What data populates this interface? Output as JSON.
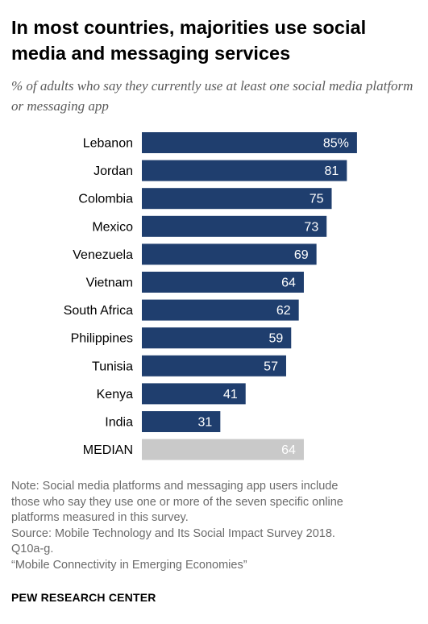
{
  "title": "In most countries, majorities use social media and messaging services",
  "subtitle": "% of adults who say they currently use at least one social media platform or messaging app",
  "chart_data": {
    "type": "bar",
    "orientation": "horizontal",
    "categories": [
      "Lebanon",
      "Jordan",
      "Colombia",
      "Mexico",
      "Venezuela",
      "Vietnam",
      "South Africa",
      "Philippines",
      "Tunisia",
      "Kenya",
      "India",
      "MEDIAN"
    ],
    "values": [
      85,
      81,
      75,
      73,
      69,
      64,
      62,
      59,
      57,
      41,
      31,
      64
    ],
    "value_labels": [
      "85%",
      "81",
      "75",
      "73",
      "69",
      "64",
      "62",
      "59",
      "57",
      "41",
      "31",
      "64"
    ],
    "xlim": [
      0,
      100
    ],
    "grid": false,
    "legend": "none",
    "colors": {
      "bar": "#1f3e6e",
      "median_bar": "#c9c9c9",
      "value_text": "#ffffff"
    }
  },
  "note_lines": [
    "Note: Social media platforms and messaging app users include",
    "those who say they use one or more of the seven specific online",
    "platforms measured in this survey.",
    "Source: Mobile Technology and Its Social Impact Survey 2018.",
    "Q10a-g.",
    "“Mobile Connectivity in Emerging Economies”"
  ],
  "brand": "PEW RESEARCH CENTER"
}
